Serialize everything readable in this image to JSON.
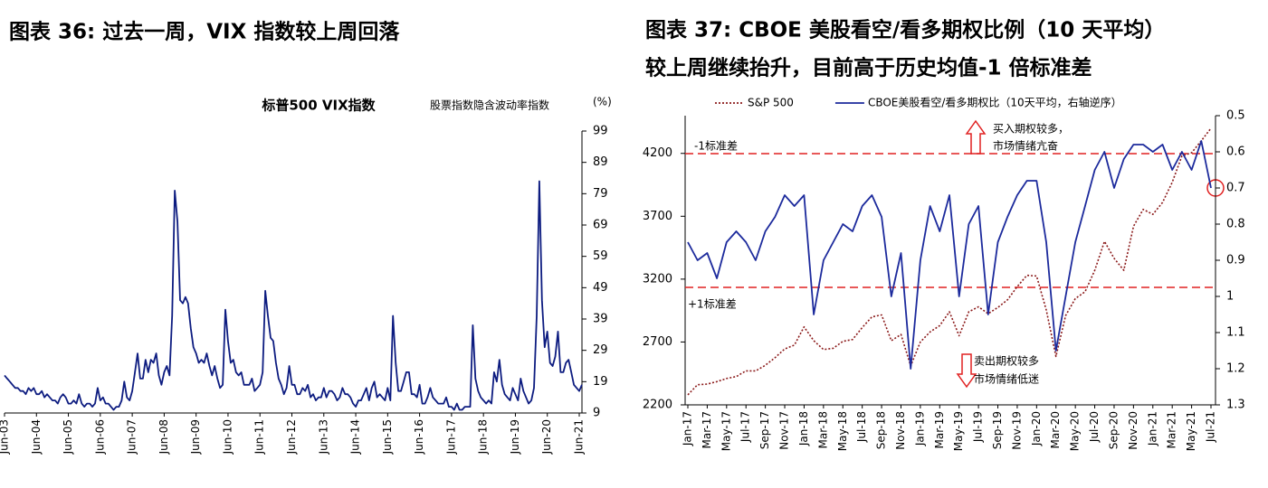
{
  "chart_data": [
    {
      "type": "line",
      "heading": "图表 36: 过去一周，VIX 指数较上周回落",
      "title": "标普500 VIX指数",
      "y_label": "股票指数隐含波动率指数",
      "y_unit": "(%)",
      "ylim": [
        9,
        99
      ],
      "yticks": [
        9,
        19,
        29,
        39,
        49,
        59,
        69,
        79,
        89,
        99
      ],
      "categories": [
        "Jun-03",
        null,
        null,
        null,
        null,
        null,
        null,
        null,
        null,
        null,
        null,
        null,
        "Jun-04",
        null,
        null,
        null,
        null,
        null,
        null,
        null,
        null,
        null,
        null,
        null,
        "Jun-05",
        null,
        null,
        null,
        null,
        null,
        null,
        null,
        null,
        null,
        null,
        null,
        "Jun-06",
        null,
        null,
        null,
        null,
        null,
        null,
        null,
        null,
        null,
        null,
        null,
        "Jun-07",
        null,
        null,
        null,
        null,
        null,
        null,
        null,
        null,
        null,
        null,
        null,
        "Jun-08",
        null,
        null,
        null,
        null,
        null,
        null,
        null,
        null,
        null,
        null,
        null,
        "Jun-09",
        null,
        null,
        null,
        null,
        null,
        null,
        null,
        null,
        null,
        null,
        null,
        "Jun-10",
        null,
        null,
        null,
        null,
        null,
        null,
        null,
        null,
        null,
        null,
        null,
        "Jun-11",
        null,
        null,
        null,
        null,
        null,
        null,
        null,
        null,
        null,
        null,
        null,
        "Jun-12",
        null,
        null,
        null,
        null,
        null,
        null,
        null,
        null,
        null,
        null,
        null,
        "Jun-13",
        null,
        null,
        null,
        null,
        null,
        null,
        null,
        null,
        null,
        null,
        null,
        "Jun-14",
        null,
        null,
        null,
        null,
        null,
        null,
        null,
        null,
        null,
        null,
        null,
        "Jun-15",
        null,
        null,
        null,
        null,
        null,
        null,
        null,
        null,
        null,
        null,
        null,
        "Jun-16",
        null,
        null,
        null,
        null,
        null,
        null,
        null,
        null,
        null,
        null,
        null,
        "Jun-17",
        null,
        null,
        null,
        null,
        null,
        null,
        null,
        null,
        null,
        null,
        null,
        "Jun-18",
        null,
        null,
        null,
        null,
        null,
        null,
        null,
        null,
        null,
        null,
        null,
        "Jun-19",
        null,
        null,
        null,
        null,
        null,
        null,
        null,
        null,
        null,
        null,
        null,
        "Jun-20",
        null,
        null,
        null,
        null,
        null,
        null,
        null,
        null,
        null,
        null,
        null,
        "Jun-21",
        null
      ],
      "series": [
        {
          "color": "#0d1c80",
          "values": [
            21,
            20,
            19,
            18,
            17,
            17,
            16,
            16,
            15,
            17,
            16,
            17,
            15,
            15,
            16,
            14,
            15,
            14,
            13,
            13,
            12,
            14,
            15,
            14,
            12,
            12,
            13,
            12,
            15,
            12,
            11,
            12,
            12,
            11,
            12,
            17,
            13,
            14,
            12,
            12,
            11,
            10,
            11,
            11,
            13,
            19,
            14,
            13,
            16,
            22,
            28,
            20,
            20,
            26,
            22,
            26,
            25,
            28,
            21,
            18,
            22,
            24,
            21,
            40,
            80,
            70,
            45,
            44,
            46,
            44,
            36,
            30,
            28,
            25,
            26,
            25,
            28,
            24,
            21,
            24,
            20,
            17,
            18,
            42,
            32,
            25,
            26,
            22,
            21,
            22,
            18,
            18,
            18,
            20,
            16,
            17,
            18,
            22,
            48,
            40,
            33,
            32,
            25,
            20,
            18,
            15,
            17,
            24,
            18,
            18,
            15,
            15,
            17,
            16,
            18,
            14,
            15,
            13,
            14,
            14,
            17,
            14,
            16,
            16,
            15,
            13,
            14,
            17,
            15,
            15,
            14,
            12,
            11,
            13,
            13,
            15,
            17,
            13,
            17,
            19,
            14,
            15,
            14,
            13,
            17,
            13,
            40,
            25,
            16,
            16,
            19,
            22,
            22,
            15,
            15,
            14,
            18,
            12,
            12,
            14,
            17,
            14,
            13,
            12,
            12,
            12,
            14,
            11,
            11,
            10,
            12,
            10,
            10,
            11,
            11,
            11,
            37,
            20,
            16,
            14,
            13,
            12,
            13,
            12,
            22,
            19,
            26,
            18,
            15,
            14,
            13,
            17,
            15,
            13,
            20,
            16,
            14,
            12,
            13,
            17,
            40,
            83,
            45,
            30,
            35,
            25,
            24,
            27,
            35,
            22,
            22,
            25,
            26,
            22,
            18,
            17,
            16,
            18
          ]
        }
      ]
    },
    {
      "type": "line",
      "heading": [
        "图表 37: CBOE 美股看空/看多期权比例（10 天平均）",
        "较上周继续抬升，目前高于历史均值-1 倍标准差"
      ],
      "ylim": [
        2200,
        4500
      ],
      "yticks": [
        2200,
        2700,
        3200,
        3700,
        4200
      ],
      "y2lim": [
        1.3,
        0.5
      ],
      "y2ticks": [
        0.5,
        0.6,
        0.7,
        0.8,
        0.9,
        1,
        1.1,
        1.2,
        1.3
      ],
      "categories": [
        "Jan-17",
        null,
        "Mar-17",
        null,
        "May-17",
        null,
        "Jul-17",
        null,
        "Sep-17",
        null,
        "Nov-17",
        null,
        "Jan-18",
        null,
        "Mar-18",
        null,
        "May-18",
        null,
        "Jul-18",
        null,
        "Sep-18",
        null,
        "Nov-18",
        null,
        "Jan-19",
        null,
        "Mar-19",
        null,
        "May-19",
        null,
        "Jul-19",
        null,
        "Sep-19",
        null,
        "Nov-19",
        null,
        "Jan-20",
        null,
        "Mar-20",
        null,
        "May-20",
        null,
        "Jul-20",
        null,
        "Sep-20",
        null,
        "Nov-20",
        null,
        "Jan-21",
        null,
        "Mar-21",
        null,
        "May-21",
        null,
        "Jul-21"
      ],
      "series": [
        {
          "name": "S&P 500",
          "color": "#8b1a1a",
          "line_style": "dotted",
          "values": [
            2280,
            2360,
            2365,
            2385,
            2410,
            2425,
            2470,
            2470,
            2515,
            2575,
            2645,
            2675,
            2820,
            2710,
            2640,
            2650,
            2705,
            2720,
            2815,
            2900,
            2915,
            2710,
            2760,
            2510,
            2700,
            2780,
            2830,
            2940,
            2750,
            2940,
            2980,
            2925,
            2975,
            3035,
            3140,
            3230,
            3225,
            2955,
            2585,
            2910,
            3045,
            3100,
            3270,
            3500,
            3365,
            3270,
            3620,
            3755,
            3715,
            3810,
            3970,
            4180,
            4205,
            4300,
            4400
          ]
        },
        {
          "name": "CBOE美股看空/看多期权比（10天平均，右轴逆序）",
          "color": "#1c2a9c",
          "line_style": "solid",
          "axis": "y2",
          "values": [
            0.85,
            0.9,
            0.88,
            0.95,
            0.85,
            0.82,
            0.85,
            0.9,
            0.82,
            0.78,
            0.72,
            0.75,
            0.72,
            1.05,
            0.9,
            0.85,
            0.8,
            0.82,
            0.75,
            0.72,
            0.78,
            1.0,
            0.88,
            1.2,
            0.9,
            0.75,
            0.82,
            0.72,
            1.0,
            0.8,
            0.75,
            1.05,
            0.85,
            0.78,
            0.72,
            0.68,
            0.68,
            0.85,
            1.15,
            1.0,
            0.85,
            0.75,
            0.65,
            0.6,
            0.7,
            0.62,
            0.58,
            0.58,
            0.6,
            0.58,
            0.65,
            0.6,
            0.65,
            0.57,
            0.7
          ]
        }
      ],
      "ref_lines": [
        {
          "label": "-1标准差",
          "value": 0.605,
          "axis": "y2"
        },
        {
          "label": "+1标准差",
          "value": 0.975,
          "axis": "y2"
        }
      ],
      "annotations": [
        "买入期权较多，",
        "市场情绪亢奋",
        "卖出期权较多",
        "市场情绪低迷"
      ]
    }
  ]
}
